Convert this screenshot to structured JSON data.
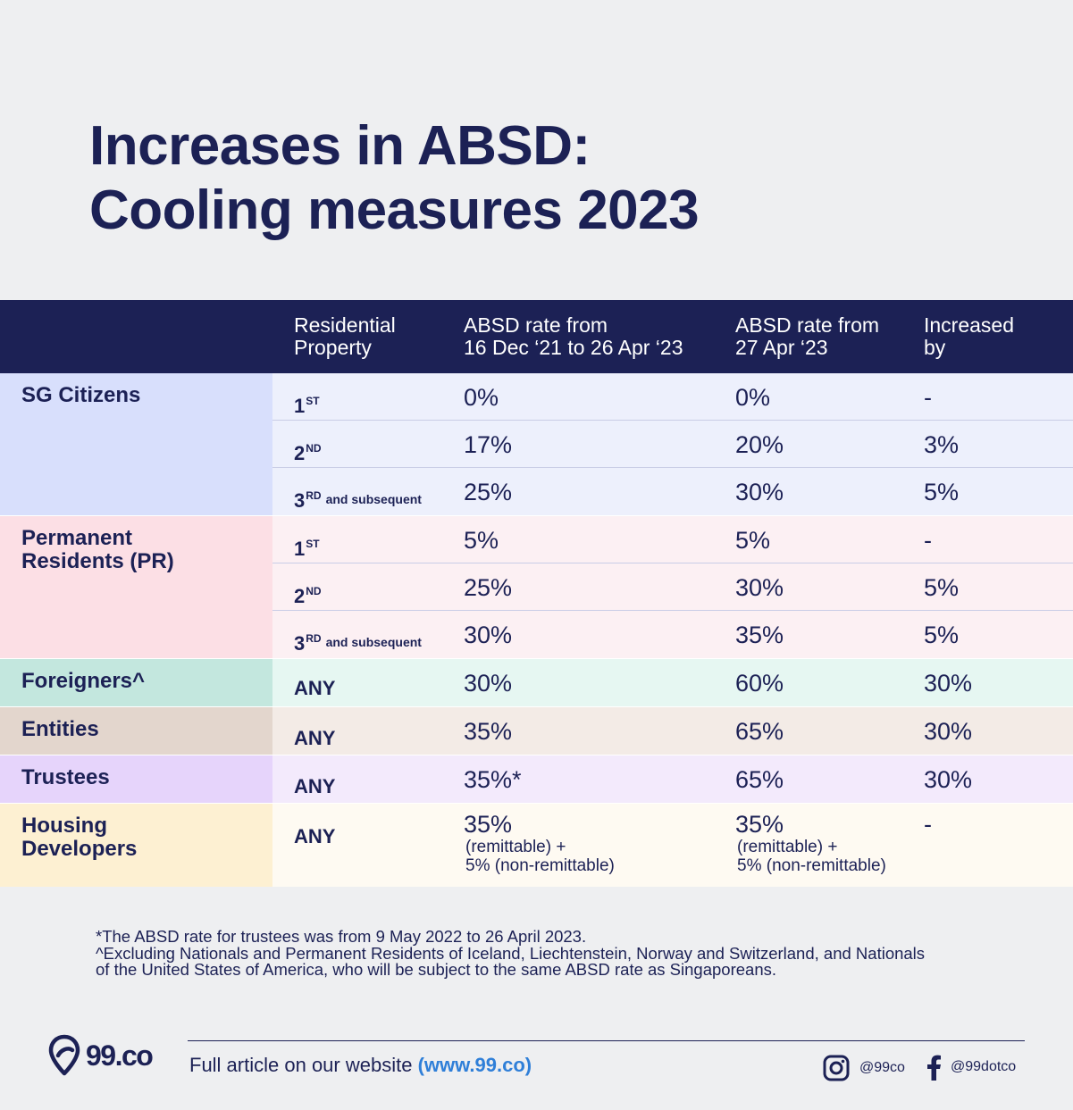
{
  "title": {
    "line1": "Increases in ABSD:",
    "line2": "Cooling measures 2023"
  },
  "table": {
    "headers": {
      "residential_property": [
        "Residential",
        "Property"
      ],
      "old_rate": [
        "ABSD rate from",
        "16 Dec ‘21 to 26 Apr ‘23"
      ],
      "new_rate": [
        "ABSD rate from",
        "27 Apr ‘23"
      ],
      "increase": [
        "Increased",
        "by"
      ]
    },
    "groups": [
      {
        "category": [
          "SG Citizens"
        ],
        "rows": [
          {
            "prop": "1",
            "sup": "ST",
            "suffix": "",
            "old": "0%",
            "new": "0%",
            "inc": "-"
          },
          {
            "prop": "2",
            "sup": "ND",
            "suffix": "",
            "old": "17%",
            "new": "20%",
            "inc": "3%"
          },
          {
            "prop": "3",
            "sup": "RD",
            "suffix": "and subsequent",
            "old": "25%",
            "new": "30%",
            "inc": "5%"
          }
        ]
      },
      {
        "category": [
          "Permanent",
          "Residents (PR)"
        ],
        "rows": [
          {
            "prop": "1",
            "sup": "ST",
            "suffix": "",
            "old": "5%",
            "new": "5%",
            "inc": "-"
          },
          {
            "prop": "2",
            "sup": "ND",
            "suffix": "",
            "old": "25%",
            "new": "30%",
            "inc": "5%"
          },
          {
            "prop": "3",
            "sup": "RD",
            "suffix": "and subsequent",
            "old": "30%",
            "new": "35%",
            "inc": "5%"
          }
        ]
      },
      {
        "category": [
          "Foreigners^"
        ],
        "rows": [
          {
            "prop": "ANY",
            "old": "30%",
            "new": "60%",
            "inc": "30%"
          }
        ]
      },
      {
        "category": [
          "Entities"
        ],
        "rows": [
          {
            "prop": "ANY",
            "old": "35%",
            "new": "65%",
            "inc": "30%"
          }
        ]
      },
      {
        "category": [
          "Trustees"
        ],
        "rows": [
          {
            "prop": "ANY",
            "old": "35%*",
            "new": "65%",
            "inc": "30%"
          }
        ]
      },
      {
        "category": [
          "Housing",
          "Developers"
        ],
        "rows": [
          {
            "prop": "ANY",
            "old": "35%",
            "old_note1": "(remittable) +",
            "old_note2": "5% (non-remittable)",
            "new": "35%",
            "new_note1": "(remittable) +",
            "new_note2": "5% (non-remittable)",
            "inc": "-"
          }
        ]
      }
    ]
  },
  "notes": [
    "*The ABSD rate for trustees was from 9 May 2022 to 26 April 2023.",
    "^Excluding Nationals and Permanent Residents of Iceland, Liechtenstein, Norway and Switzerland, and Nationals",
    "of the United States of America, who will be subject to the same ABSD rate as Singaporeans."
  ],
  "footer": {
    "logo_text": "99.co",
    "cta_text": "Full article on our website ",
    "cta_link": "(www.99.co)",
    "instagram_handle": "@99co",
    "facebook_handle": "@99dotco"
  },
  "colors": {
    "navy": "#1c2155",
    "link": "#2f7fd8"
  }
}
